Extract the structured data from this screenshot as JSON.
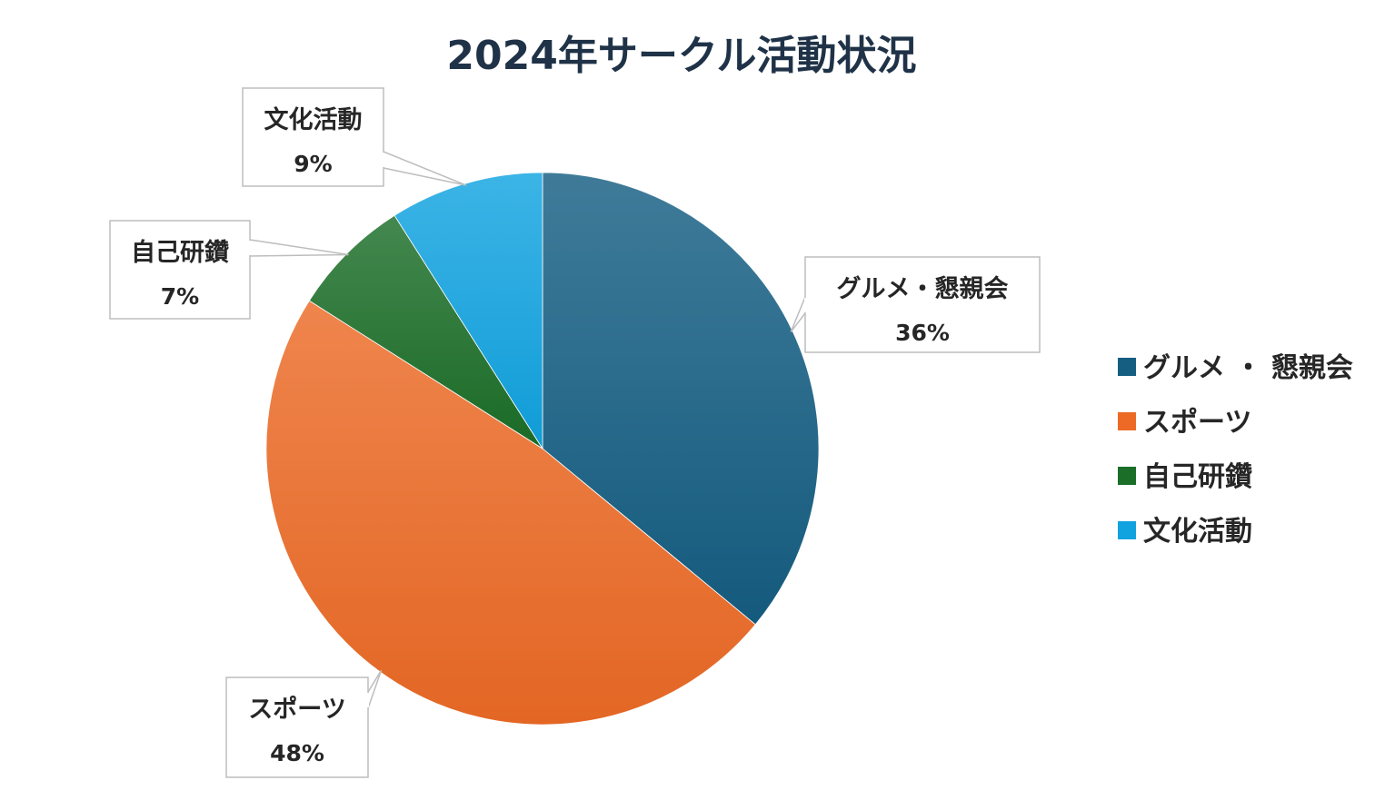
{
  "chart_data": {
    "type": "pie",
    "title": "2024年サークル活動状況",
    "categories": [
      "グルメ・懇親会",
      "スポーツ",
      "自己研鑽",
      "文化活動"
    ],
    "legend_labels": [
      "グルメ ・ 懇親会",
      "スポーツ",
      "自己研鑽",
      "文化活動"
    ],
    "values": [
      36,
      48,
      7,
      9
    ],
    "value_labels": [
      "36%",
      "48%",
      "7%",
      "9%"
    ],
    "colors": [
      "#155e82",
      "#ec6a26",
      "#1b6e28",
      "#11a3e0"
    ],
    "legend_position": "right",
    "data_label_style": "callout"
  }
}
